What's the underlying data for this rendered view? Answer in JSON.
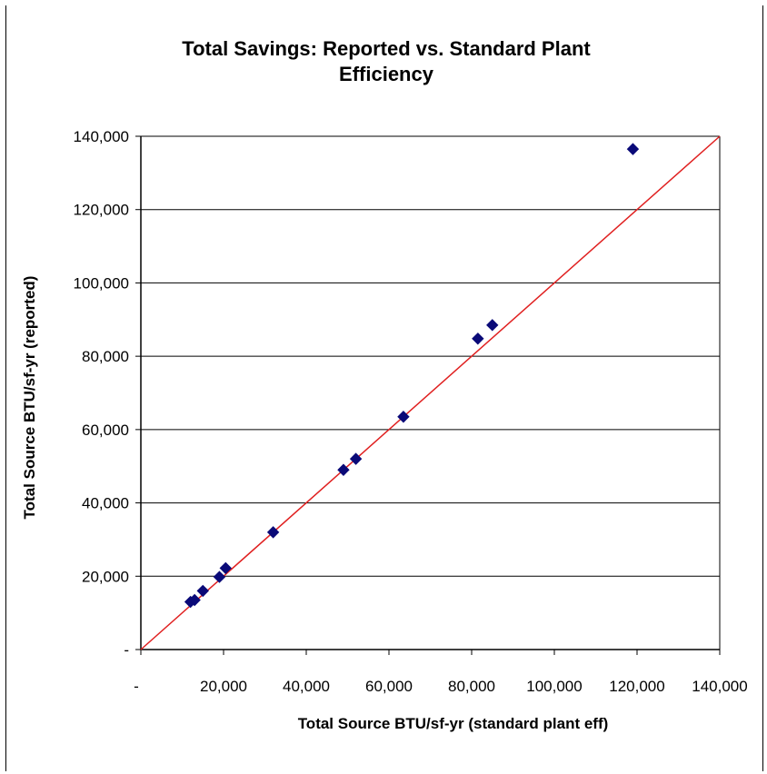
{
  "chart_data": {
    "type": "scatter",
    "title_line1": "Total Savings: Reported vs. Standard Plant",
    "title_line2": "Efficiency",
    "xlabel": "Total Source BTU/sf-yr  (standard  plant eff)",
    "ylabel": "Total Source BTU/sf-yr  (reported)",
    "xlim": [
      0,
      140000
    ],
    "ylim": [
      0,
      140000
    ],
    "x_ticks": [
      "-",
      "20,000",
      "40,000",
      "60,000",
      "80,000",
      "100,000",
      "120,000",
      "140,000"
    ],
    "y_ticks": [
      "-",
      "20,000",
      "40,000",
      "60,000",
      "80,000",
      "100,000",
      "120,000",
      "140,000"
    ],
    "grid": "horizontal",
    "legend": "none",
    "reference_line": {
      "x": [
        0,
        140000
      ],
      "y": [
        0,
        140000
      ],
      "color": "#e02020"
    },
    "marker_color": "#0a0a78",
    "points": [
      {
        "x": 12000,
        "y": 13000
      },
      {
        "x": 13000,
        "y": 13500
      },
      {
        "x": 15000,
        "y": 16000
      },
      {
        "x": 19000,
        "y": 19800
      },
      {
        "x": 20500,
        "y": 22200
      },
      {
        "x": 32000,
        "y": 32000
      },
      {
        "x": 49000,
        "y": 49000
      },
      {
        "x": 52000,
        "y": 52000
      },
      {
        "x": 63500,
        "y": 63500
      },
      {
        "x": 81500,
        "y": 84800
      },
      {
        "x": 85000,
        "y": 88500
      },
      {
        "x": 119000,
        "y": 136500
      }
    ]
  }
}
